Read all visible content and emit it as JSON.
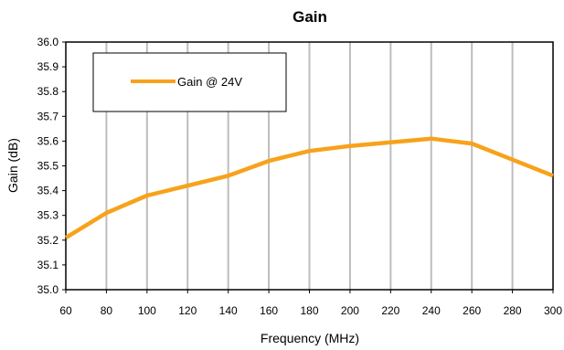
{
  "chart_data": {
    "type": "line",
    "title": "Gain",
    "xlabel": "Frequency (MHz)",
    "ylabel": "Gain (dB)",
    "xlim": [
      60,
      300
    ],
    "ylim": [
      35.0,
      36.0
    ],
    "x_ticks": [
      "60",
      "80",
      "100",
      "120",
      "140",
      "160",
      "180",
      "200",
      "220",
      "240",
      "260",
      "280",
      "300"
    ],
    "y_ticks": [
      "35.0",
      "35.1",
      "35.2",
      "35.3",
      "35.4",
      "35.5",
      "35.6",
      "35.7",
      "35.8",
      "35.9",
      "36.0"
    ],
    "grid": "vertical",
    "legend_position": "top-left",
    "series": [
      {
        "name": "Gain @  24V",
        "color": "#F7A21B",
        "x": [
          60,
          80,
          100,
          120,
          140,
          160,
          180,
          200,
          220,
          240,
          260,
          280,
          300
        ],
        "y": [
          35.21,
          35.31,
          35.38,
          35.42,
          35.46,
          35.52,
          35.56,
          35.58,
          35.595,
          35.61,
          35.59,
          35.525,
          35.46
        ]
      }
    ],
    "colors": {
      "grid": "#BDBDBD",
      "axis": "#000000",
      "background": "#FFFFFF"
    }
  }
}
